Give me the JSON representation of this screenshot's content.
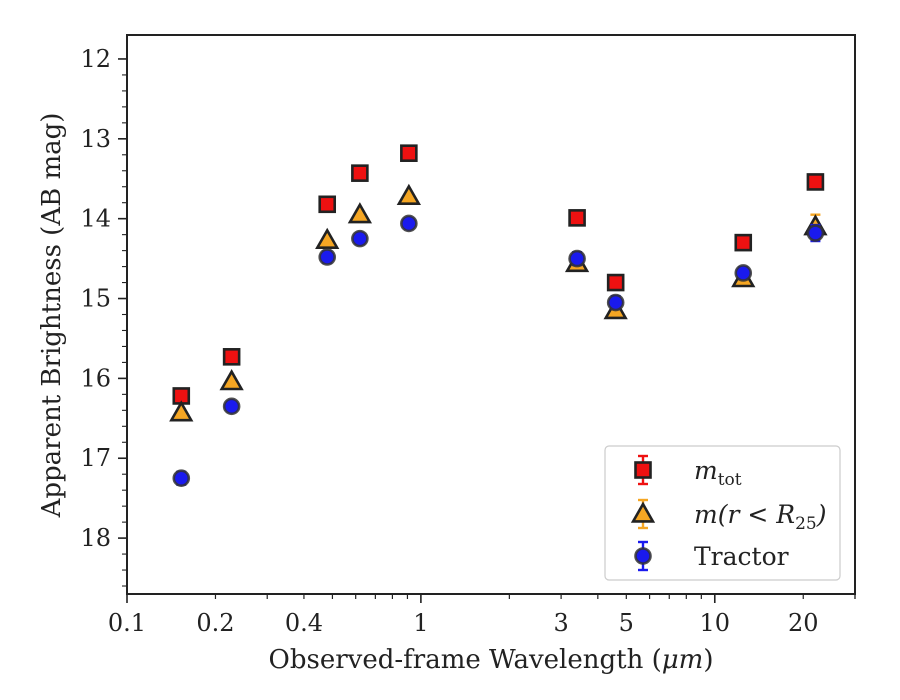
{
  "chart_data": {
    "type": "scatter",
    "xlabel_prefix": "Observed-frame Wavelength (",
    "xlabel_unit": "μm",
    "xlabel_suffix": ")",
    "ylabel": "Apparent Brightness (AB mag)",
    "x_scale": "log",
    "xlim": [
      0.1,
      30
    ],
    "ylim": [
      18.7,
      11.7
    ],
    "y_inverted": true,
    "grid": false,
    "legend_position": "lower-right",
    "x_ticks": [
      {
        "value": 0.1,
        "label": "0.1"
      },
      {
        "value": 0.2,
        "label": "0.2"
      },
      {
        "value": 0.4,
        "label": "0.4"
      },
      {
        "value": 1,
        "label": "1"
      },
      {
        "value": 3,
        "label": "3"
      },
      {
        "value": 5,
        "label": "5"
      },
      {
        "value": 10,
        "label": "10"
      },
      {
        "value": 20,
        "label": "20"
      }
    ],
    "y_ticks": [
      {
        "value": 12,
        "label": "12"
      },
      {
        "value": 13,
        "label": "13"
      },
      {
        "value": 14,
        "label": "14"
      },
      {
        "value": 15,
        "label": "15"
      },
      {
        "value": 16,
        "label": "16"
      },
      {
        "value": 17,
        "label": "17"
      },
      {
        "value": 18,
        "label": "18"
      }
    ],
    "series": [
      {
        "name": "m_tot",
        "legend_base": "m",
        "legend_sub": "tot",
        "marker": "square",
        "color": "#ee1111",
        "error_color": "#ee1111",
        "x": [
          0.153,
          0.227,
          0.48,
          0.62,
          0.91,
          3.4,
          4.6,
          12.5,
          22.0
        ],
        "y": [
          16.22,
          15.73,
          13.82,
          13.43,
          13.18,
          13.99,
          14.8,
          14.3,
          13.54
        ],
        "yerr": [
          0.02,
          0.02,
          0.02,
          0.02,
          0.02,
          0.02,
          0.02,
          0.03,
          0.05
        ]
      },
      {
        "name": "m(r < R_25)",
        "legend_base": "m(r < R",
        "legend_sub": "25",
        "legend_tail": ")",
        "marker": "triangle",
        "color": "#f5a623",
        "error_color": "#f5a623",
        "x": [
          0.153,
          0.227,
          0.48,
          0.62,
          0.91,
          3.4,
          4.6,
          12.5,
          22.0
        ],
        "y": [
          16.43,
          16.04,
          14.27,
          13.95,
          13.72,
          14.56,
          15.15,
          14.75,
          14.1
        ],
        "yerr": [
          0.02,
          0.02,
          0.02,
          0.02,
          0.02,
          0.03,
          0.03,
          0.04,
          0.15
        ]
      },
      {
        "name": "Tractor",
        "legend_base": "Tractor",
        "marker": "circle",
        "color": "#1a1aee",
        "error_color": "#1a1aee",
        "x": [
          0.153,
          0.227,
          0.48,
          0.62,
          0.91,
          3.4,
          4.6,
          12.5,
          22.0
        ],
        "y": [
          17.25,
          16.35,
          14.48,
          14.25,
          14.06,
          14.5,
          15.05,
          14.68,
          14.18
        ],
        "yerr": [
          0.08,
          0.06,
          0.07,
          0.06,
          0.06,
          0.08,
          0.08,
          0.07,
          0.1
        ]
      }
    ]
  }
}
